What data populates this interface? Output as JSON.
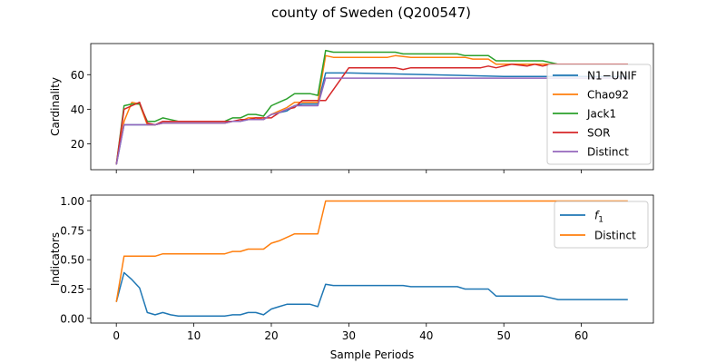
{
  "figure": {
    "title": "county of Sweden (Q200547)"
  },
  "chart_data": [
    {
      "type": "line",
      "title": "",
      "xlabel": "",
      "ylabel": "Cardinality",
      "xlim": [
        -3.3,
        69.3
      ],
      "ylim": [
        5,
        78
      ],
      "xticks": [
        0,
        10,
        20,
        30,
        40,
        50,
        60
      ],
      "yticks": [
        20,
        40,
        60
      ],
      "show_xtick_labels": false,
      "grid": false,
      "legend_position": "center-right",
      "series": [
        {
          "name": "N1−UNIF",
          "color": "#1f77b4",
          "x": [
            0,
            1,
            2,
            3,
            4,
            5,
            6,
            8,
            10,
            14,
            15,
            16,
            17,
            19,
            20,
            21,
            22,
            23,
            24,
            25,
            26,
            27,
            30,
            40,
            50,
            57,
            60,
            66
          ],
          "y": [
            8,
            31,
            31,
            31,
            31,
            31,
            32,
            32,
            32,
            32,
            33,
            33,
            34,
            34,
            37,
            38,
            39,
            42,
            43,
            43,
            43,
            61,
            61,
            60,
            59,
            59,
            59,
            59
          ]
        },
        {
          "name": "Chao92",
          "color": "#ff7f0e",
          "x": [
            0,
            1,
            2,
            3,
            4,
            5,
            6,
            7,
            8,
            14,
            15,
            16,
            17,
            18,
            19,
            20,
            21,
            22,
            23,
            24,
            25,
            26,
            27,
            28,
            31,
            35,
            36,
            38,
            45,
            46,
            48,
            49,
            55,
            56,
            57,
            66
          ],
          "y": [
            8,
            33,
            44,
            43,
            31,
            31,
            32,
            32,
            32,
            32,
            33,
            33,
            35,
            35,
            34,
            37,
            39,
            41,
            44,
            44,
            44,
            44,
            71,
            70,
            70,
            70,
            71,
            70,
            70,
            69,
            69,
            66,
            66,
            66,
            66,
            66
          ]
        },
        {
          "name": "Jack1",
          "color": "#2ca02c",
          "x": [
            0,
            1,
            2,
            3,
            4,
            5,
            6,
            7,
            8,
            14,
            15,
            16,
            17,
            18,
            19,
            20,
            21,
            22,
            23,
            24,
            25,
            26,
            27,
            28,
            36,
            37,
            44,
            45,
            48,
            49,
            55,
            56,
            57,
            66
          ],
          "y": [
            8,
            42,
            43,
            43,
            33,
            33,
            35,
            34,
            33,
            33,
            35,
            35,
            37,
            37,
            36,
            42,
            44,
            46,
            49,
            49,
            49,
            48,
            74,
            73,
            73,
            72,
            72,
            71,
            71,
            68,
            68,
            67,
            66,
            66
          ]
        },
        {
          "name": "SOR",
          "color": "#d62728",
          "x": [
            0,
            1,
            2,
            3,
            4,
            5,
            6,
            8,
            14,
            15,
            16,
            17,
            18,
            19,
            20,
            21,
            22,
            23,
            24,
            25,
            26,
            27,
            30,
            32,
            35,
            36,
            37,
            38,
            40,
            42,
            44,
            46,
            47,
            48,
            49,
            51,
            53,
            54,
            55,
            56,
            57,
            66
          ],
          "y": [
            8,
            40,
            42,
            44,
            32,
            31,
            33,
            33,
            33,
            33,
            34,
            34,
            35,
            35,
            35,
            38,
            40,
            41,
            45,
            45,
            45,
            45,
            64,
            64,
            64,
            64,
            63,
            64,
            64,
            64,
            64,
            64,
            64,
            65,
            64,
            66,
            65,
            66,
            65,
            66,
            66,
            66
          ]
        },
        {
          "name": "Distinct",
          "color": "#9467bd",
          "x": [
            0,
            1,
            5,
            6,
            14,
            15,
            16,
            17,
            19,
            20,
            21,
            22,
            23,
            26,
            27,
            66
          ],
          "y": [
            8,
            31,
            31,
            32,
            32,
            33,
            33,
            34,
            34,
            37,
            38,
            40,
            42,
            42,
            58,
            58
          ]
        }
      ]
    },
    {
      "type": "line",
      "title": "",
      "xlabel": "Sample Periods",
      "ylabel": "Indicators",
      "xlim": [
        -3.3,
        69.3
      ],
      "ylim": [
        -0.04,
        1.05
      ],
      "xticks": [
        0,
        10,
        20,
        30,
        40,
        50,
        60
      ],
      "yticks": [
        0.0,
        0.25,
        0.5,
        0.75,
        1.0
      ],
      "ytick_labels": [
        "0.00",
        "0.25",
        "0.50",
        "0.75",
        "1.00"
      ],
      "xtick_labels": [
        "0",
        "10",
        "20",
        "30",
        "40",
        "50",
        "60"
      ],
      "show_xtick_labels": true,
      "grid": false,
      "legend_position": "top-right",
      "series": [
        {
          "name": "f1",
          "label_base": "f",
          "label_sub": "1",
          "color": "#1f77b4",
          "x": [
            0,
            1,
            2,
            3,
            4,
            5,
            6,
            7,
            8,
            9,
            14,
            15,
            16,
            17,
            18,
            19,
            20,
            21,
            22,
            23,
            24,
            25,
            26,
            27,
            28,
            37,
            38,
            44,
            45,
            48,
            49,
            55,
            57,
            66
          ],
          "y": [
            0.14,
            0.39,
            0.33,
            0.26,
            0.05,
            0.03,
            0.05,
            0.03,
            0.02,
            0.02,
            0.02,
            0.03,
            0.03,
            0.05,
            0.05,
            0.03,
            0.08,
            0.1,
            0.12,
            0.12,
            0.12,
            0.12,
            0.1,
            0.29,
            0.28,
            0.28,
            0.27,
            0.27,
            0.25,
            0.25,
            0.19,
            0.19,
            0.16,
            0.16
          ]
        },
        {
          "name": "Distinct",
          "label_base": "Distinct",
          "label_sub": "",
          "color": "#ff7f0e",
          "x": [
            0,
            1,
            2,
            3,
            4,
            5,
            6,
            7,
            8,
            14,
            15,
            16,
            17,
            18,
            19,
            20,
            21,
            22,
            23,
            24,
            25,
            26,
            27,
            66
          ],
          "y": [
            0.14,
            0.53,
            0.53,
            0.53,
            0.53,
            0.53,
            0.55,
            0.55,
            0.55,
            0.55,
            0.57,
            0.57,
            0.59,
            0.59,
            0.59,
            0.64,
            0.66,
            0.69,
            0.72,
            0.72,
            0.72,
            0.72,
            1.0,
            1.0
          ]
        }
      ]
    }
  ]
}
